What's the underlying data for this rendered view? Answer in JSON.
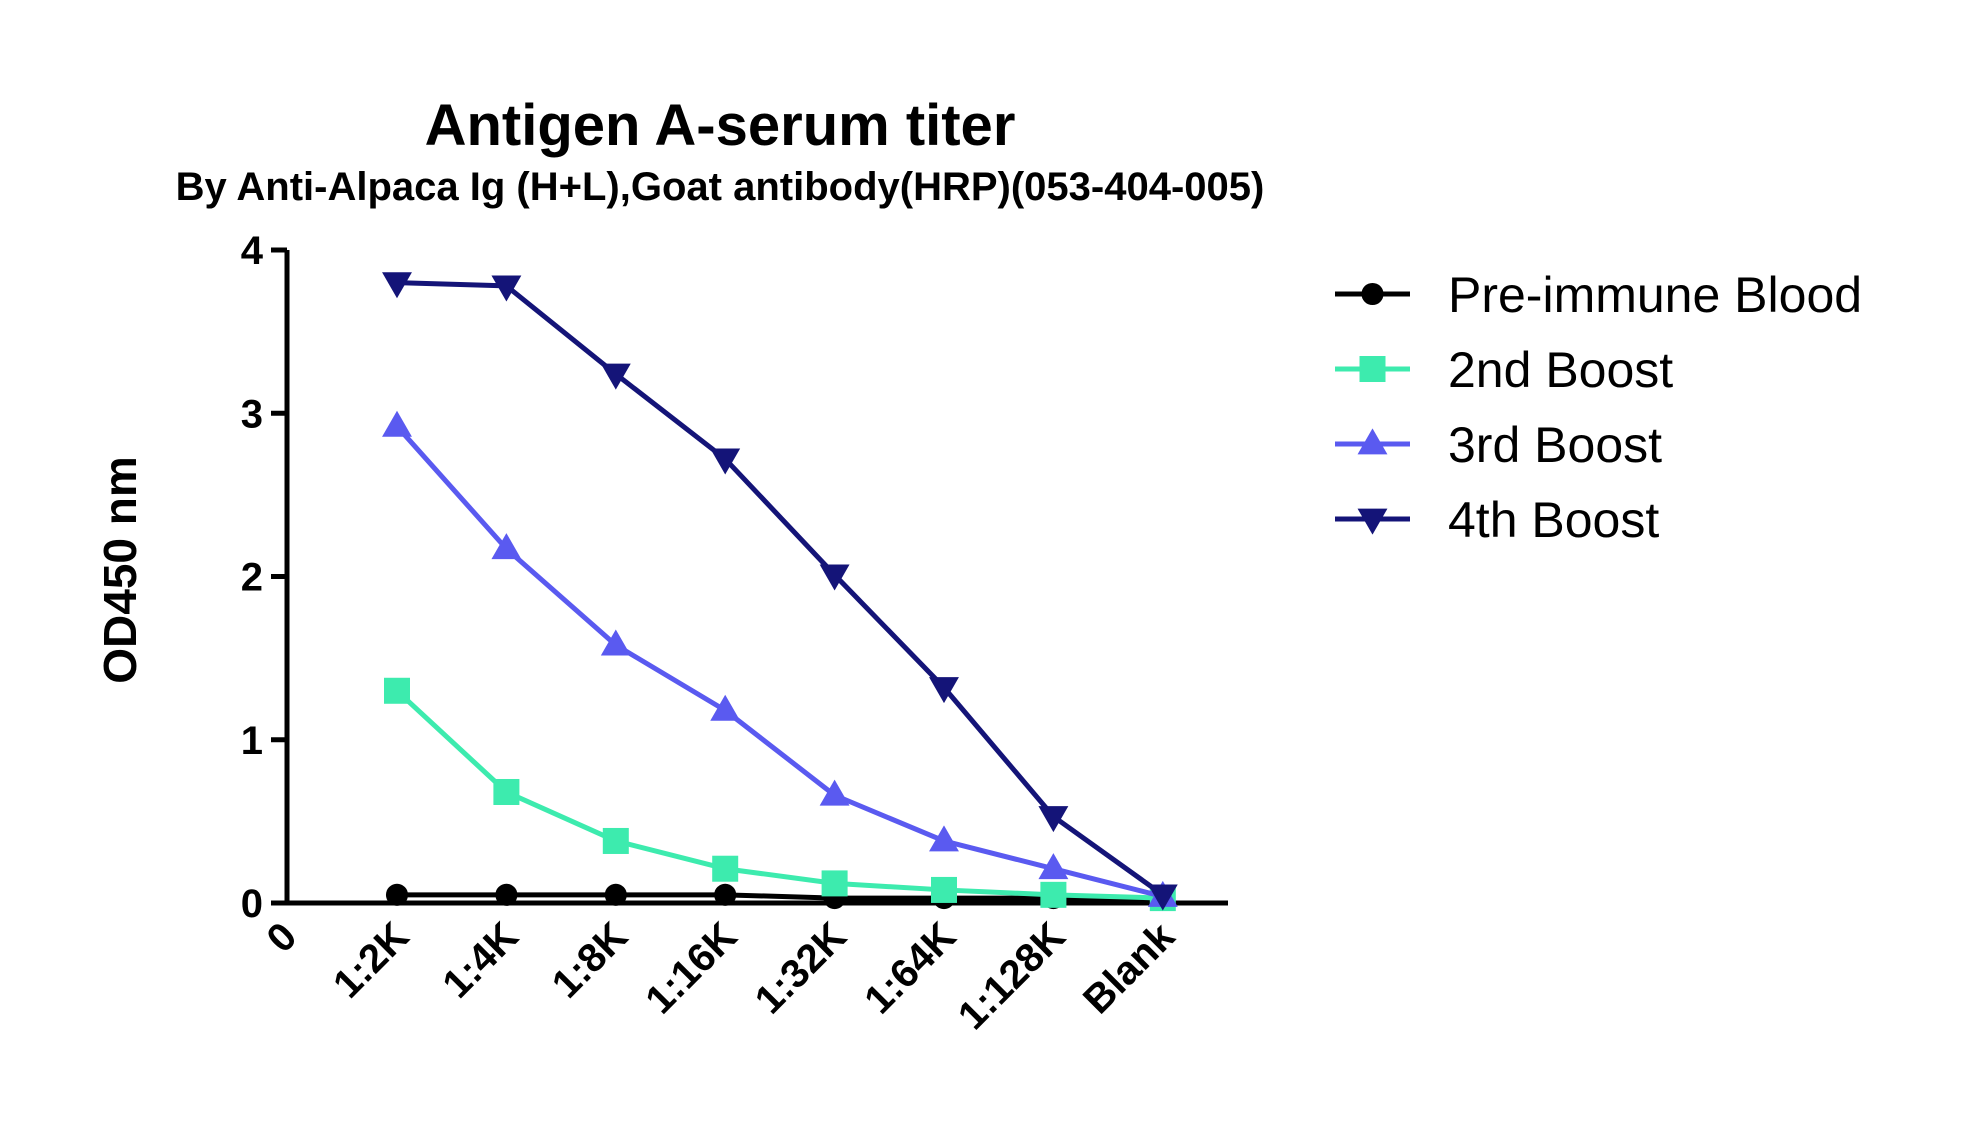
{
  "chart_data": {
    "type": "line",
    "title": "Antigen A-serum titer",
    "subtitle": "By Anti-Alpaca Ig (H+L),Goat antibody(HRP)(053-404-005)",
    "xlabel": "",
    "ylabel": "OD450 nm",
    "ylim": [
      0,
      4
    ],
    "yticks": [
      "0",
      "1",
      "2",
      "3",
      "4"
    ],
    "origin_label": "0",
    "categories": [
      "1:2K",
      "1:4K",
      "1:8K",
      "1:16K",
      "1:32K",
      "1:64K",
      "1:128K",
      "Blank"
    ],
    "legend_position": "right",
    "series": [
      {
        "name": "Pre-immune Blood",
        "color": "#000000",
        "marker": "circle",
        "values": [
          0.05,
          0.05,
          0.05,
          0.05,
          0.03,
          0.03,
          0.03,
          0.03
        ]
      },
      {
        "name": "2nd Boost",
        "color": "#3DEBAE",
        "marker": "square",
        "values": [
          1.3,
          0.68,
          0.38,
          0.21,
          0.12,
          0.08,
          0.05,
          0.03
        ]
      },
      {
        "name": "3rd Boost",
        "color": "#5A5AF0",
        "marker": "triangle-up",
        "values": [
          2.92,
          2.17,
          1.58,
          1.18,
          0.66,
          0.38,
          0.21,
          0.04
        ]
      },
      {
        "name": "4th Boost",
        "color": "#141478",
        "marker": "triangle-down",
        "values": [
          3.8,
          3.78,
          3.24,
          2.72,
          2.01,
          1.32,
          0.53,
          0.05
        ]
      }
    ]
  }
}
